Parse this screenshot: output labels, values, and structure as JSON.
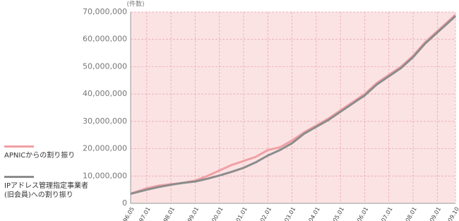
{
  "chart_data": {
    "type": "line",
    "y_label": "(件数)",
    "x": [
      "1996.05",
      "1997.01",
      "1997.07",
      "1998.01",
      "1998.07",
      "1999.01",
      "1999.07",
      "2000.01",
      "2000.07",
      "2001.01",
      "2001.07",
      "2002.01",
      "2002.07",
      "2003.01",
      "2003.07",
      "2004.01",
      "2004.07",
      "2005.01",
      "2005.07",
      "2006.01",
      "2006.07",
      "2007.01",
      "2007.07",
      "2008.01",
      "2008.07",
      "2009.01",
      "2009.07",
      "2009.10"
    ],
    "xticks": [
      "1996.05",
      "1997.01",
      "1998.01",
      "1999.01",
      "2000.01",
      "2001.01",
      "2002.01",
      "2003.01",
      "2004.01",
      "2005.01",
      "2006.01",
      "2007.01",
      "2008.01",
      "2009.01",
      "2009.10"
    ],
    "series": [
      {
        "name": "APNICからの割り振り",
        "color": "#f0a0a4",
        "values": [
          3500000,
          5500000,
          6500000,
          7000000,
          7500000,
          8300000,
          10000000,
          12000000,
          14000000,
          15500000,
          17000000,
          19500000,
          20500000,
          23000000,
          26000000,
          28500000,
          31000000,
          34000000,
          37000000,
          40000000,
          44000000,
          47000000,
          50000000,
          54000000,
          59000000,
          63000000,
          67000000,
          69000000
        ]
      },
      {
        "name": "IPアドレス管理指定事業者(旧会員)への割り振り",
        "color": "#8c8c8c",
        "values": [
          3500000,
          5000000,
          6000000,
          6800000,
          7500000,
          8000000,
          9000000,
          10200000,
          11500000,
          13000000,
          15000000,
          17500000,
          19500000,
          22000000,
          25500000,
          28000000,
          30500000,
          33500000,
          36500000,
          39500000,
          43500000,
          46500000,
          49500000,
          53500000,
          58500000,
          62500000,
          66500000,
          68500000
        ]
      }
    ],
    "ylim": [
      0,
      70000000
    ],
    "yticks": [
      0,
      {
        "value": 10000000,
        "label": "10,000,000"
      },
      {
        "value": 20000000,
        "label": "20,000,000"
      },
      {
        "value": 30000000,
        "label": "30,000,000"
      },
      {
        "value": 40000000,
        "label": "40,000,000"
      },
      {
        "value": 50000000,
        "label": "50,000,000"
      },
      {
        "value": 60000000,
        "label": "60,000,000"
      },
      {
        "value": 70000000,
        "label": "70,000,000"
      }
    ],
    "grid": true,
    "background": "#fbe3e4"
  }
}
